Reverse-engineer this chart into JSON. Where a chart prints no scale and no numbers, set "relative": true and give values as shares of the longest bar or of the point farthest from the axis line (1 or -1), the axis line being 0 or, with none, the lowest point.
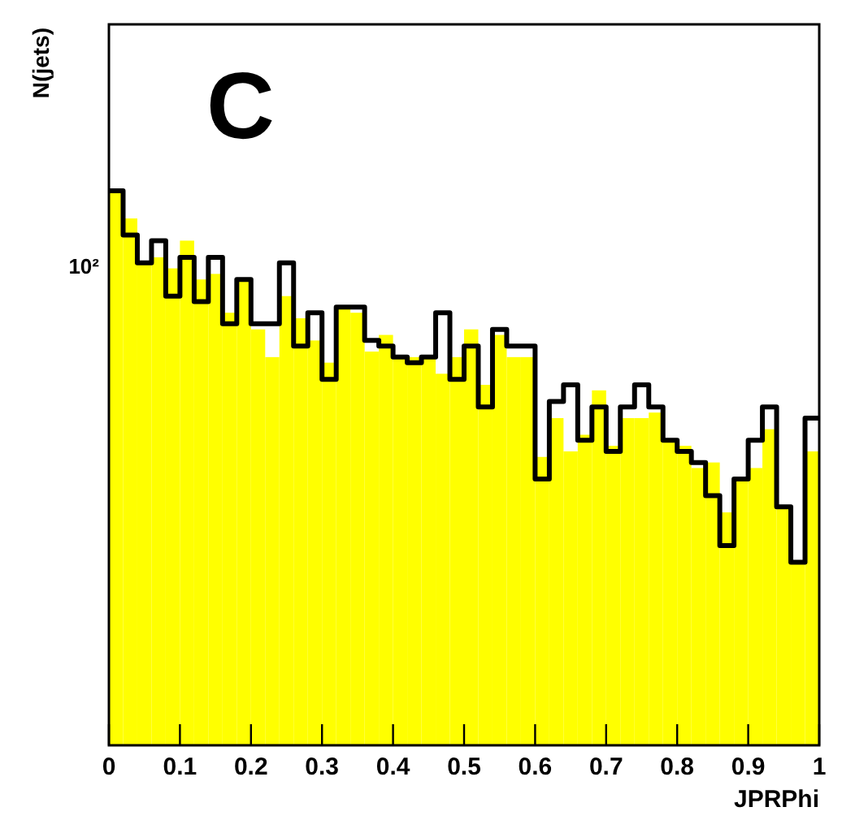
{
  "chart_data": {
    "type": "histogram",
    "relative": true,
    "xlabel": "JPRPhi",
    "ylabel": "N(jets)",
    "annotations": [
      "C",
      "10²"
    ],
    "bins": [
      0,
      0.02,
      0.04,
      0.06,
      0.08,
      0.1,
      0.12,
      0.14,
      0.16,
      0.18,
      0.2,
      0.22,
      0.24,
      0.26,
      0.28,
      0.3,
      0.32,
      0.34,
      0.36,
      0.38,
      0.4,
      0.42,
      0.44,
      0.46,
      0.48,
      0.5,
      0.52,
      0.54,
      0.56,
      0.58,
      0.6,
      0.62,
      0.64,
      0.66,
      0.68,
      0.7,
      0.72,
      0.74,
      0.76,
      0.78,
      0.8,
      0.82,
      0.84,
      0.86,
      0.88,
      0.9,
      0.92,
      0.94,
      0.96,
      0.98,
      1
    ],
    "series": [
      {
        "color": "#ffff00",
        "values": [
          1,
          0.95,
          0.87,
          0.88,
          0.86,
          0.91,
          0.84,
          0.85,
          0.78,
          0.84,
          0.75,
          0.7,
          0.81,
          0.77,
          0.73,
          0.69,
          0.79,
          0.78,
          0.71,
          0.74,
          0.7,
          0.7,
          0.7,
          0.67,
          0.7,
          0.75,
          0.65,
          0.74,
          0.7,
          0.7,
          0.52,
          0.59,
          0.53,
          0.56,
          0.64,
          0.54,
          0.59,
          0.59,
          0.6,
          0.55,
          0.54,
          0.5,
          0.51,
          0.42,
          0.48,
          0.5,
          0.57,
          0.43,
          0.33,
          0.53
        ]
      },
      {
        "type": "step",
        "color": "#000000",
        "x": [
          0,
          0.02,
          0.04,
          0.06,
          0.08,
          0.1,
          0.12,
          0.14,
          0.16,
          0.18,
          0.2,
          0.22,
          0.24,
          0.26,
          0.28,
          0.3,
          0.32,
          0.34,
          0.36,
          0.38,
          0.4,
          0.42,
          0.44,
          0.46,
          0.48,
          0.5,
          0.52,
          0.54,
          0.56,
          0.58,
          0.6,
          0.62,
          0.64,
          0.66,
          0.68,
          0.7,
          0.72,
          0.74,
          0.76,
          0.78,
          0.8,
          0.82,
          0.84,
          0.86,
          0.88,
          0.9,
          0.92,
          0.94,
          0.96,
          0.98,
          1
        ],
        "values": [
          1,
          0.92,
          0.87,
          0.91,
          0.81,
          0.88,
          0.8,
          0.88,
          0.76,
          0.84,
          0.76,
          0.76,
          0.87,
          0.72,
          0.78,
          0.66,
          0.79,
          0.79,
          0.73,
          0.72,
          0.7,
          0.69,
          0.7,
          0.78,
          0.66,
          0.72,
          0.61,
          0.75,
          0.72,
          0.72,
          0.48,
          0.62,
          0.65,
          0.55,
          0.61,
          0.53,
          0.61,
          0.65,
          0.61,
          0.55,
          0.53,
          0.51,
          0.45,
          0.36,
          0.48,
          0.55,
          0.61,
          0.43,
          0.33,
          0.59,
          0.59
        ]
      }
    ],
    "xlim": [
      0,
      1
    ],
    "xticks": [
      0,
      0.1,
      0.2,
      0.3,
      0.4,
      0.5,
      0.6,
      0.7,
      0.8,
      0.9,
      1
    ]
  }
}
